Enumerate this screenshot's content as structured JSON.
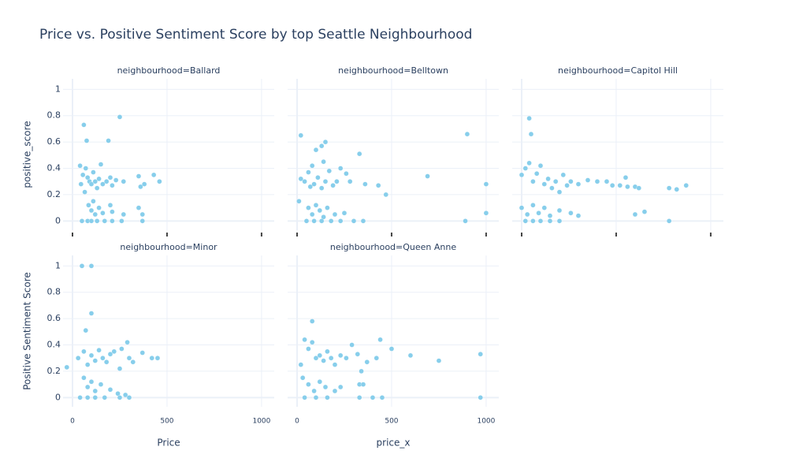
{
  "chart_data": {
    "type": "scatter",
    "title": "Price vs. Positive Sentiment Score by top Seattle Neighbourhood",
    "color": "#87ceeb",
    "xlim": [
      -50,
      1067
    ],
    "ylim": [
      -0.07,
      1.08
    ],
    "xticks": [
      0,
      500,
      1000
    ],
    "yticks": [
      0,
      0.2,
      0.4,
      0.6,
      0.8,
      1
    ],
    "grid": true,
    "panels": [
      {
        "title": "neighbourhood=Ballard",
        "ylabel": "positive_score",
        "x": [
          60,
          75,
          190,
          250,
          40,
          55,
          70,
          80,
          90,
          100,
          110,
          120,
          130,
          140,
          150,
          160,
          180,
          200,
          210,
          230,
          270,
          350,
          360,
          380,
          430,
          460,
          45,
          65,
          85,
          100,
          110,
          120,
          140,
          160,
          200,
          210,
          270,
          350,
          370,
          50,
          80,
          100,
          130,
          170,
          210,
          260,
          370
        ],
        "y": [
          0.73,
          0.61,
          0.61,
          0.79,
          0.42,
          0.35,
          0.4,
          0.33,
          0.3,
          0.28,
          0.37,
          0.3,
          0.25,
          0.32,
          0.43,
          0.28,
          0.3,
          0.33,
          0.27,
          0.31,
          0.3,
          0.34,
          0.26,
          0.28,
          0.35,
          0.3,
          0.28,
          0.22,
          0.12,
          0.08,
          0.15,
          0.05,
          0.1,
          0.06,
          0.12,
          0.07,
          0.05,
          0.1,
          0.05,
          0,
          0,
          0,
          0,
          0,
          0,
          0,
          0
        ]
      },
      {
        "title": "neighbourhood=Belltown",
        "x": [
          20,
          100,
          130,
          150,
          140,
          80,
          60,
          40,
          20,
          70,
          90,
          110,
          130,
          150,
          170,
          190,
          210,
          230,
          260,
          280,
          330,
          360,
          430,
          470,
          690,
          900,
          1000,
          1000,
          890,
          10,
          60,
          80,
          100,
          120,
          140,
          160,
          200,
          250,
          50,
          90,
          130,
          180,
          230,
          300,
          350
        ],
        "y": [
          0.65,
          0.54,
          0.57,
          0.6,
          0.45,
          0.42,
          0.37,
          0.3,
          0.32,
          0.26,
          0.28,
          0.33,
          0.25,
          0.3,
          0.38,
          0.27,
          0.3,
          0.4,
          0.36,
          0.3,
          0.51,
          0.28,
          0.27,
          0.2,
          0.34,
          0.66,
          0.28,
          0.06,
          0,
          0.15,
          0.1,
          0.05,
          0.12,
          0.08,
          0.03,
          0.1,
          0.05,
          0.06,
          0,
          0,
          0,
          0,
          0,
          0,
          0
        ]
      },
      {
        "title": "neighbourhood=Capitol Hill",
        "x": [
          40,
          50,
          0,
          20,
          40,
          60,
          80,
          100,
          120,
          140,
          160,
          180,
          200,
          220,
          240,
          260,
          300,
          350,
          400,
          450,
          480,
          520,
          550,
          560,
          600,
          620,
          780,
          820,
          870,
          0,
          30,
          60,
          90,
          120,
          150,
          200,
          260,
          300,
          600,
          650,
          20,
          60,
          100,
          150,
          200,
          780
        ],
        "y": [
          0.78,
          0.66,
          0.35,
          0.4,
          0.44,
          0.3,
          0.36,
          0.42,
          0.28,
          0.32,
          0.25,
          0.3,
          0.22,
          0.35,
          0.27,
          0.3,
          0.28,
          0.31,
          0.3,
          0.3,
          0.27,
          0.27,
          0.33,
          0.26,
          0.26,
          0.25,
          0.25,
          0.24,
          0.27,
          0.1,
          0.05,
          0.12,
          0.06,
          0.1,
          0.04,
          0.08,
          0.06,
          0.04,
          0.05,
          0.07,
          0,
          0,
          0,
          0,
          0,
          0
        ]
      },
      {
        "title": "neighbourhood=Minor",
        "ylabel": "Positive Sentiment Score",
        "xlabel": "Price",
        "x": [
          50,
          100,
          100,
          70,
          -30,
          30,
          60,
          80,
          100,
          120,
          140,
          160,
          180,
          200,
          220,
          250,
          260,
          290,
          300,
          320,
          370,
          420,
          450,
          60,
          80,
          100,
          120,
          150,
          200,
          240,
          280,
          40,
          80,
          120,
          170,
          250,
          300
        ],
        "y": [
          1,
          1,
          0.64,
          0.51,
          0.23,
          0.3,
          0.35,
          0.25,
          0.32,
          0.28,
          0.36,
          0.3,
          0.27,
          0.33,
          0.35,
          0.22,
          0.37,
          0.42,
          0.3,
          0.27,
          0.34,
          0.3,
          0.3,
          0.15,
          0.08,
          0.12,
          0.05,
          0.1,
          0.06,
          0.03,
          0.02,
          0,
          0,
          0,
          0,
          0,
          0
        ]
      },
      {
        "title": "neighbourhood=Queen Anne",
        "xlabel": "price_x",
        "x": [
          80,
          40,
          60,
          80,
          100,
          120,
          140,
          160,
          180,
          200,
          230,
          260,
          290,
          320,
          340,
          370,
          420,
          440,
          500,
          600,
          750,
          970,
          970,
          20,
          30,
          60,
          90,
          120,
          150,
          200,
          230,
          330,
          350,
          40,
          100,
          160,
          330,
          400,
          450
        ],
        "y": [
          0.58,
          0.44,
          0.37,
          0.42,
          0.3,
          0.32,
          0.28,
          0.35,
          0.3,
          0.25,
          0.32,
          0.3,
          0.4,
          0.33,
          0.2,
          0.27,
          0.3,
          0.44,
          0.37,
          0.32,
          0.28,
          0.33,
          0,
          0.25,
          0.15,
          0.1,
          0.05,
          0.12,
          0.08,
          0.05,
          0.08,
          0.1,
          0.1,
          0,
          0,
          0,
          0,
          0,
          0
        ]
      }
    ]
  }
}
